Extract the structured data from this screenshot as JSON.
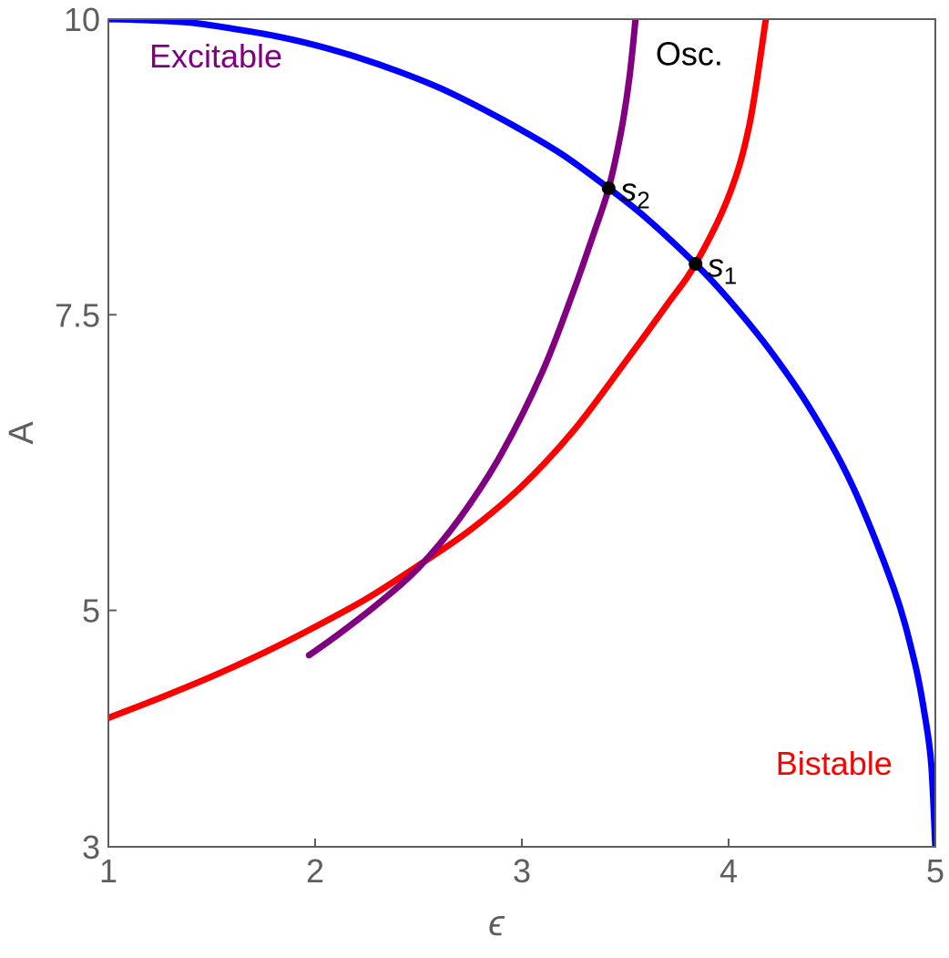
{
  "figure": {
    "background": "#ffffff"
  },
  "chart_data": {
    "type": "line",
    "title": "",
    "xlabel": "ϵ",
    "ylabel": "A",
    "xlim": [
      1,
      5
    ],
    "ylim": [
      3,
      10
    ],
    "grid": false,
    "frame": true,
    "frame_color": "#5e5e5e",
    "tick_label_color": "#5e5e5e",
    "xticks": {
      "labeled": [
        {
          "value": 1,
          "label": "1"
        },
        {
          "value": 2,
          "label": "2"
        },
        {
          "value": 3,
          "label": "3"
        },
        {
          "value": 4,
          "label": "4"
        },
        {
          "value": 5,
          "label": "5"
        }
      ],
      "tick_marks": [
        2,
        3,
        4
      ]
    },
    "yticks": {
      "labeled": [
        {
          "value": 3,
          "label": "3"
        },
        {
          "value": 5,
          "label": "5"
        },
        {
          "value": 7.5,
          "label": "7.5"
        },
        {
          "value": 10,
          "label": "10"
        }
      ],
      "tick_marks": [
        5,
        7.5
      ]
    },
    "series": [
      {
        "name": "blue-boundary-curve",
        "color": "#0000ff",
        "stroke_width": 7,
        "x": [
          1,
          1.2,
          1.4,
          1.6,
          1.8,
          2.0,
          2.2,
          2.4,
          2.6,
          2.8,
          3.0,
          3.2,
          3.42,
          3.6,
          3.84,
          4.0,
          4.2,
          4.4,
          4.6,
          4.8,
          4.9,
          4.95,
          4.98,
          5.0
        ],
        "y": [
          10.0,
          9.99,
          9.97,
          9.92,
          9.86,
          9.78,
          9.68,
          9.56,
          9.42,
          9.25,
          9.06,
          8.85,
          8.57,
          8.32,
          7.93,
          7.63,
          7.2,
          6.69,
          6.05,
          5.18,
          4.56,
          4.1,
          3.7,
          3.0
        ]
      },
      {
        "name": "red-boundary-curve",
        "color": "#ff0000",
        "stroke_width": 7,
        "x": [
          1,
          1.25,
          1.5,
          1.75,
          2.0,
          2.25,
          2.5,
          2.75,
          3.0,
          3.25,
          3.5,
          3.7,
          3.84,
          4.0,
          4.1,
          4.18
        ],
        "y": [
          4.09,
          4.26,
          4.44,
          4.64,
          4.86,
          5.1,
          5.38,
          5.68,
          6.05,
          6.52,
          7.1,
          7.58,
          7.93,
          8.5,
          9.1,
          10.0
        ]
      },
      {
        "name": "purple-boundary-curve",
        "color": "#800080",
        "stroke_width": 7,
        "x": [
          1.97,
          2.1,
          2.3,
          2.5,
          2.7,
          2.9,
          3.1,
          3.25,
          3.35,
          3.42,
          3.48,
          3.52,
          3.55
        ],
        "y": [
          4.62,
          4.78,
          5.05,
          5.36,
          5.78,
          6.32,
          7.02,
          7.7,
          8.2,
          8.57,
          9.05,
          9.5,
          10.0
        ]
      }
    ],
    "points": [
      {
        "name": "point-s1",
        "x": 3.84,
        "y": 7.93,
        "radius": 7.5,
        "color": "#000000",
        "label": "s",
        "subscript": "1"
      },
      {
        "name": "point-s2",
        "x": 3.42,
        "y": 8.57,
        "radius": 7.5,
        "color": "#000000",
        "label": "s",
        "subscript": "2"
      }
    ],
    "annotations": [
      {
        "name": "region-label-excitable",
        "text": "Excitable",
        "x": 1.52,
        "y": 9.69,
        "color": "#800080"
      },
      {
        "name": "region-label-osc",
        "text": "Osc.",
        "x": 3.81,
        "y": 9.71,
        "color": "#000000"
      },
      {
        "name": "region-label-bistable",
        "text": "Bistable",
        "x": 4.51,
        "y": 3.71,
        "color": "#ff0000"
      }
    ],
    "legend": null
  }
}
